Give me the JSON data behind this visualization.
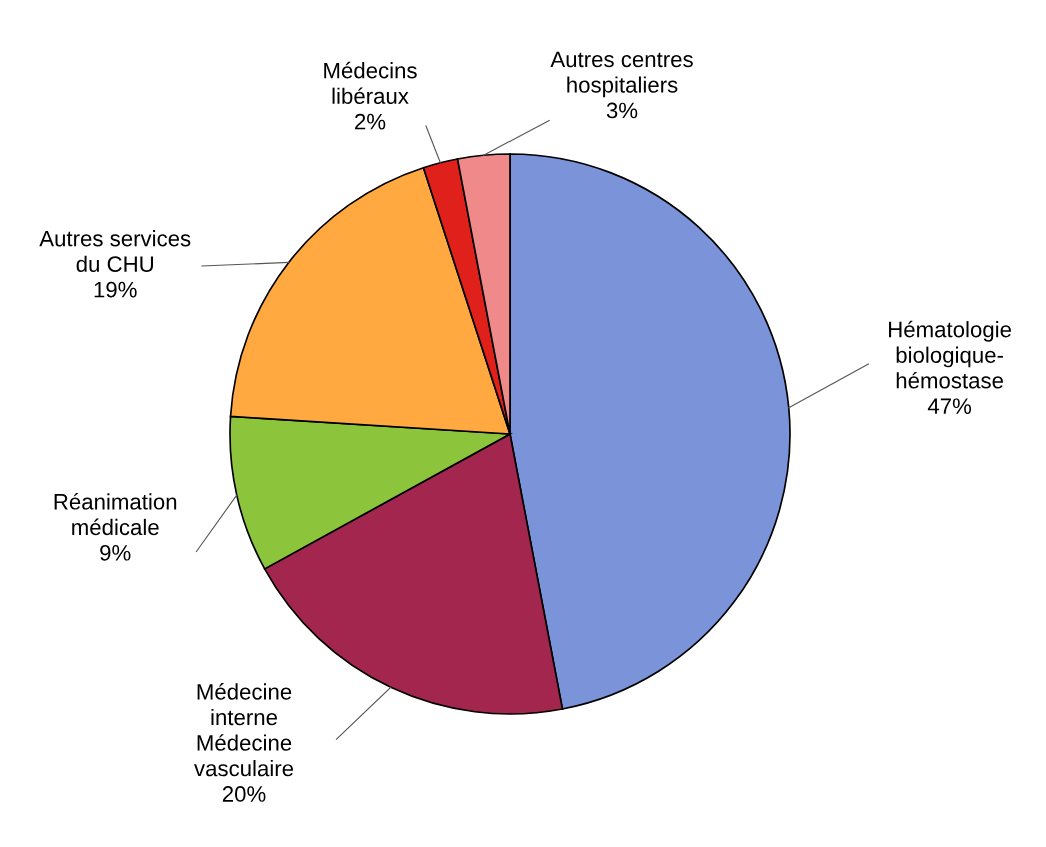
{
  "chart_data": {
    "type": "pie",
    "categories": [
      "Hématologie\nbiologique-\nhémostase",
      "Médecine\ninterne\nMédecine\nvasculaire",
      "Réanimation\nmédicale",
      "Autres services\ndu CHU",
      "Médecins\nlibéraux",
      "Autres centres\nhospitaliers"
    ],
    "values": [
      47,
      20,
      9,
      19,
      2,
      3
    ],
    "value_labels": [
      "47%",
      "20%",
      "9%",
      "19%",
      "2%",
      "3%"
    ],
    "colors": [
      "#7b93d8",
      "#a3264f",
      "#8cc43c",
      "#ffa940",
      "#e0201a",
      "#f08a8a"
    ]
  }
}
